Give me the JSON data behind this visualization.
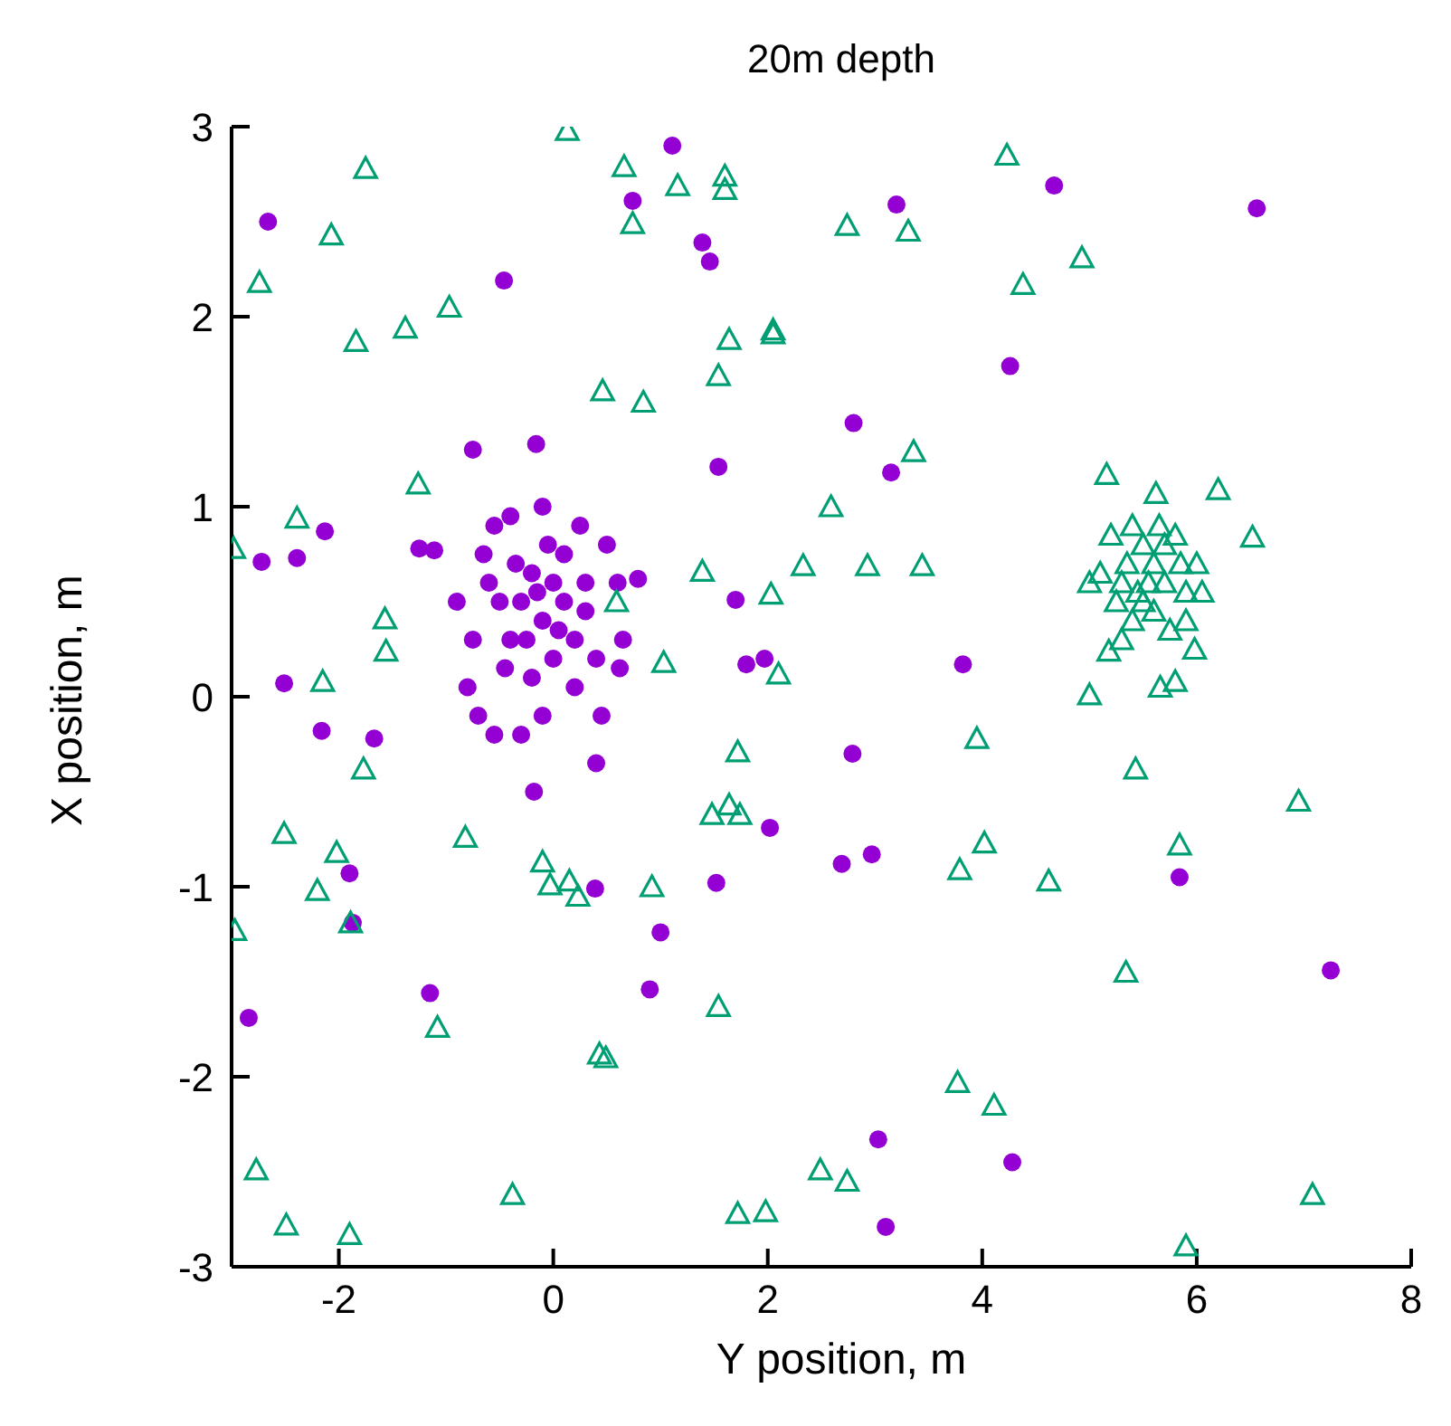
{
  "chart_data": {
    "type": "scatter",
    "title": "20m depth",
    "xlabel": "Y position, m",
    "ylabel": "X position, m",
    "xlim": [
      -3,
      8
    ],
    "ylim": [
      -3,
      3
    ],
    "xticks": [
      -2,
      0,
      2,
      4,
      6,
      8
    ],
    "yticks": [
      -3,
      -2,
      -1,
      0,
      1,
      2,
      3
    ],
    "grid": false,
    "legend": false,
    "series": [
      {
        "color": "#9400d3",
        "marker": "circle",
        "x": [
          -2.66,
          -0.46,
          -0.16,
          -0.75,
          1.11,
          0.74,
          1.39,
          1.46,
          3.2,
          4.67,
          6.56,
          4.26,
          2.8,
          3.15,
          1.54,
          -2.13,
          -2.72,
          -2.39,
          -1.25,
          -1.11,
          0.79,
          -2.51,
          1.7,
          1.8,
          1.97,
          3.82,
          -2.16,
          -1.67,
          2.79,
          -0.18,
          0.39,
          2.02,
          1.52,
          2.69,
          2.97,
          -1.9,
          -1.87,
          1.0,
          0.9,
          -1.15,
          -2.84,
          5.84,
          7.25,
          3.03,
          4.28,
          3.1,
          -0.55,
          0.25,
          0.5,
          0.6,
          0.65,
          0.62,
          0.4,
          0.45,
          0.4,
          -0.3,
          -0.55,
          -0.7,
          -0.8,
          -0.75,
          -0.9,
          -0.6,
          -0.4,
          -0.1,
          0.1,
          0.3,
          -0.2,
          0.0,
          0.2,
          -0.4,
          -0.3,
          -0.1,
          0.1,
          -0.2,
          0.0,
          -0.5,
          0.2,
          -0.1,
          -0.45,
          0.3,
          -0.65,
          -0.05,
          -0.25,
          0.05,
          -0.15,
          -0.35
        ],
        "values": [
          2.5,
          2.19,
          1.33,
          1.3,
          2.9,
          2.61,
          2.39,
          2.29,
          2.59,
          2.69,
          2.57,
          1.74,
          1.44,
          1.18,
          1.21,
          0.87,
          0.71,
          0.73,
          0.78,
          0.77,
          0.62,
          0.07,
          0.51,
          0.17,
          0.2,
          0.17,
          -0.18,
          -0.22,
          -0.3,
          -0.5,
          -1.01,
          -0.69,
          -0.98,
          -0.88,
          -0.83,
          -0.93,
          -1.19,
          -1.24,
          -1.54,
          -1.56,
          -1.69,
          -0.95,
          -1.44,
          -2.33,
          -2.45,
          -2.79,
          0.9,
          0.9,
          0.8,
          0.6,
          0.3,
          0.15,
          0.2,
          -0.1,
          -0.35,
          -0.2,
          -0.2,
          -0.1,
          0.05,
          0.3,
          0.5,
          0.6,
          0.95,
          1.0,
          0.75,
          0.6,
          0.1,
          0.2,
          0.3,
          0.3,
          0.5,
          0.4,
          0.5,
          0.65,
          0.6,
          0.5,
          0.05,
          -0.1,
          0.15,
          0.45,
          0.75,
          0.8,
          0.3,
          0.35,
          0.55,
          0.7
        ]
      },
      {
        "color": "#009e73",
        "marker": "triangle",
        "x": [
          0.13,
          -1.75,
          0.66,
          1.16,
          1.6,
          1.6,
          0.74,
          -2.07,
          -2.74,
          2.74,
          3.31,
          4.23,
          4.93,
          4.38,
          -0.97,
          -1.38,
          -1.84,
          1.64,
          2.05,
          2.05,
          0.46,
          0.84,
          1.54,
          3.36,
          2.59,
          3.44,
          2.93,
          2.33,
          1.39,
          2.03,
          0.59,
          -2.39,
          -2.98,
          -1.26,
          -1.57,
          -1.56,
          -2.15,
          1.03,
          2.1,
          -1.77,
          1.72,
          3.95,
          4.02,
          3.79,
          1.48,
          1.64,
          1.74,
          -2.51,
          -2.02,
          -2.2,
          -1.89,
          -2.97,
          -0.82,
          -0.1,
          -0.03,
          0.15,
          0.23,
          0.92,
          1.54,
          -1.08,
          0.43,
          0.49,
          4.62,
          6.95,
          5.34,
          5.84,
          5.43,
          3.77,
          4.11,
          -2.77,
          -2.49,
          -1.9,
          -0.38,
          1.72,
          1.98,
          2.49,
          2.74,
          5.9,
          7.08,
          5.98,
          5.0,
          5.66,
          5.8,
          5.18,
          6.2,
          6.52,
          5.16,
          5.62,
          5.2,
          5.3,
          5.4,
          5.5,
          5.6,
          5.7,
          5.8,
          5.9,
          5.5,
          5.4,
          5.6,
          5.75,
          5.0,
          5.1,
          5.35,
          5.65,
          5.85,
          6.0,
          5.55,
          5.45,
          5.7,
          5.3,
          5.9,
          6.05,
          5.25
        ],
        "values": [
          2.98,
          2.78,
          2.79,
          2.69,
          2.74,
          2.67,
          2.49,
          2.43,
          2.18,
          2.48,
          2.45,
          2.85,
          2.31,
          2.17,
          2.05,
          1.94,
          1.87,
          1.88,
          1.93,
          1.91,
          1.61,
          1.55,
          1.69,
          1.29,
          1.0,
          0.69,
          0.69,
          0.69,
          0.66,
          0.54,
          0.5,
          0.94,
          0.78,
          1.12,
          0.41,
          0.24,
          0.08,
          0.18,
          0.12,
          -0.38,
          -0.29,
          -0.22,
          -0.77,
          -0.91,
          -0.62,
          -0.57,
          -0.62,
          -0.72,
          -0.82,
          -1.02,
          -1.19,
          -1.23,
          -0.74,
          -0.87,
          -0.99,
          -0.97,
          -1.05,
          -1.0,
          -1.63,
          -1.74,
          -1.88,
          -1.9,
          -0.97,
          -0.55,
          -1.45,
          -0.78,
          -0.38,
          -2.03,
          -2.15,
          -2.49,
          -2.78,
          -2.83,
          -2.62,
          -2.72,
          -2.71,
          -2.49,
          -2.55,
          -2.89,
          -2.62,
          0.25,
          0.01,
          0.05,
          0.08,
          0.24,
          1.09,
          0.84,
          1.17,
          1.07,
          0.85,
          0.6,
          0.9,
          0.8,
          0.7,
          0.6,
          0.85,
          0.55,
          0.5,
          0.4,
          0.45,
          0.35,
          0.6,
          0.65,
          0.7,
          0.9,
          0.7,
          0.7,
          0.6,
          0.55,
          0.8,
          0.3,
          0.4,
          0.55,
          0.5
        ]
      }
    ]
  }
}
